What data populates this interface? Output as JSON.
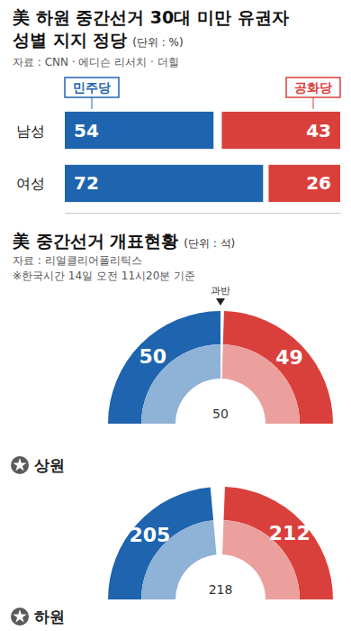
{
  "chart_data": [
    {
      "type": "bar",
      "orientation": "horizontal",
      "title": "美 하원 중간선거 30대 미만 유권자 성별 지지 정당",
      "unit": "(단위 : %)",
      "source": "자료 : CNN · 에디슨 리서치 · 더힐",
      "categories": [
        "남성",
        "여성"
      ],
      "series": [
        {
          "name": "민주당",
          "color": "#1e64ae",
          "values": [
            54,
            72
          ]
        },
        {
          "name": "공화당",
          "color": "#d9403c",
          "values": [
            43,
            26
          ]
        }
      ],
      "xlim": [
        0,
        100
      ],
      "tick_labels": false,
      "data_labels": true
    },
    {
      "type": "half_donut",
      "title": "美 중간선거 개표현황",
      "unit": "(단위 : 석)",
      "source": "자료 : 리얼클리어폴리틱스",
      "note": "※한국시간 14일 오전 11시20분 기준",
      "annotation": "과반",
      "colors": [
        "#1e64ae",
        "#d9403c"
      ],
      "data_labels": true,
      "panels": [
        {
          "label": "상원",
          "ylim": [
            0,
            100
          ],
          "majority": 50,
          "values": [
            50,
            49
          ]
        },
        {
          "label": "하원",
          "ylim": [
            0,
            435
          ],
          "majority": 218,
          "values": [
            205,
            212
          ]
        }
      ]
    }
  ]
}
